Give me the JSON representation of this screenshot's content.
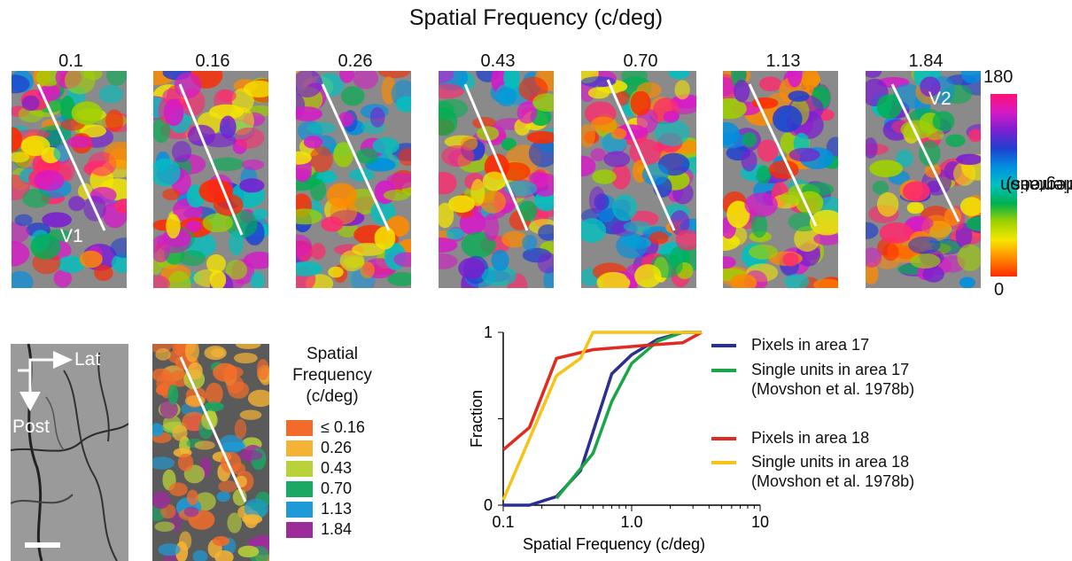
{
  "figure": {
    "title": "Spatial Frequency (c/deg)",
    "maps": [
      {
        "label": "0.1",
        "area_label": "V1"
      },
      {
        "label": "0.16",
        "area_label": ""
      },
      {
        "label": "0.26",
        "area_label": ""
      },
      {
        "label": "0.43",
        "area_label": ""
      },
      {
        "label": "0.70",
        "area_label": ""
      },
      {
        "label": "1.13",
        "area_label": ""
      },
      {
        "label": "1.84",
        "area_label": "V2"
      }
    ],
    "orientation_colorbar": {
      "max_label": "180",
      "min_label": "0",
      "axis_line1": "Orientation",
      "axis_line2": "(degrees)"
    },
    "anatomy": {
      "lat_label": "Lat",
      "post_label": "Post"
    },
    "sf_legend": {
      "title_line1": "Spatial",
      "title_line2": "Frequency",
      "title_line3": "(c/deg)",
      "items": [
        {
          "label": "≤ 0.16",
          "color": "#f26b2a"
        },
        {
          "label": "0.26",
          "color": "#f5b335"
        },
        {
          "label": "0.43",
          "color": "#b9d13a"
        },
        {
          "label": "0.70",
          "color": "#1aa862"
        },
        {
          "label": "1.13",
          "color": "#1e9ad6"
        },
        {
          "label": "1.84",
          "color": "#9b2c9a"
        }
      ]
    }
  },
  "chart_data": {
    "type": "line",
    "xlabel": "Spatial Frequency (c/deg)",
    "ylabel": "Fraction",
    "xscale": "log",
    "xlim": [
      0.1,
      10
    ],
    "ylim": [
      0,
      1
    ],
    "xticks": [
      "0.1",
      "1.0",
      "10"
    ],
    "yticks": [
      "0",
      "1"
    ],
    "series": [
      {
        "name": "Pixels in area 17",
        "color": "#2b2f8f",
        "x": [
          0.1,
          0.16,
          0.26,
          0.4,
          0.7,
          1.0,
          1.6,
          2.5,
          3.5
        ],
        "y": [
          0.0,
          0.0,
          0.05,
          0.2,
          0.76,
          0.87,
          0.96,
          1.0,
          1.0
        ]
      },
      {
        "name": "Single units in area 17",
        "name_line2": "(Movshon et al. 1978b)",
        "color": "#1aa646",
        "x": [
          0.26,
          0.5,
          0.7,
          1.0,
          1.6,
          2.5,
          3.5
        ],
        "y": [
          0.04,
          0.3,
          0.6,
          0.82,
          0.95,
          1.0,
          1.0
        ]
      },
      {
        "name": "Pixels in area 18",
        "color": "#e12a20",
        "x": [
          0.1,
          0.16,
          0.26,
          0.5,
          1.6,
          2.5,
          3.5
        ],
        "y": [
          0.32,
          0.45,
          0.85,
          0.9,
          0.93,
          0.94,
          1.0
        ]
      },
      {
        "name": "Single units in area 18",
        "name_line2": "(Movshon et al. 1978b)",
        "color": "#f7c21a",
        "x": [
          0.1,
          0.26,
          0.4,
          0.5,
          1.6,
          3.5
        ],
        "y": [
          0.03,
          0.75,
          0.85,
          1.0,
          1.0,
          1.0
        ]
      }
    ]
  }
}
